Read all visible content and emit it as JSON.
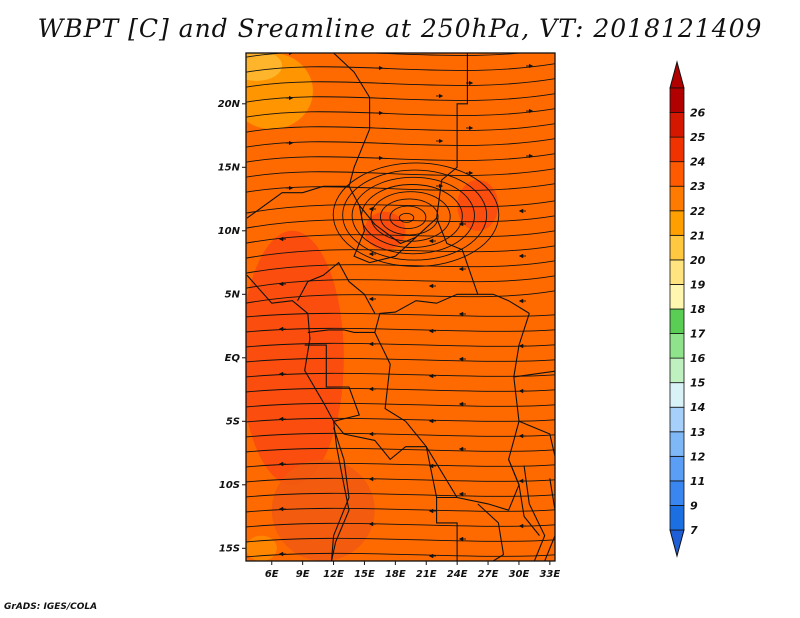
{
  "title": "WBPT [C] and Sreamline at 250hPa, VT: 2018121409",
  "credit": "GrADS: IGES/COLA",
  "map": {
    "lon_range": [
      3.5,
      33.5
    ],
    "lat_range": [
      -16,
      24
    ],
    "lat_ticks": [
      {
        "value": 20,
        "label": "20N"
      },
      {
        "value": 15,
        "label": "15N"
      },
      {
        "value": 10,
        "label": "10N"
      },
      {
        "value": 5,
        "label": "5N"
      },
      {
        "value": 0,
        "label": "EQ"
      },
      {
        "value": -5,
        "label": "5S"
      },
      {
        "value": -10,
        "label": "10S"
      },
      {
        "value": -15,
        "label": "15S"
      }
    ],
    "lon_ticks": [
      {
        "value": 6,
        "label": "6E"
      },
      {
        "value": 9,
        "label": "9E"
      },
      {
        "value": 12,
        "label": "12E"
      },
      {
        "value": 15,
        "label": "15E"
      },
      {
        "value": 18,
        "label": "18E"
      },
      {
        "value": 21,
        "label": "21E"
      },
      {
        "value": 24,
        "label": "24E"
      },
      {
        "value": 27,
        "label": "27E"
      },
      {
        "value": 30,
        "label": "30E"
      },
      {
        "value": 33,
        "label": "33E"
      }
    ],
    "base_color": "#ff6a00",
    "field_patches": [
      {
        "color": "#fa4a10",
        "lon": 8,
        "lat": 0,
        "rx": 5,
        "ry": 10
      },
      {
        "color": "#fa4a10",
        "lon": 26,
        "lat": 12,
        "rx": 2,
        "ry": 2
      },
      {
        "color": "#fa4a10",
        "lon": 17,
        "lat": 10,
        "rx": 2,
        "ry": 1.5
      },
      {
        "color": "#f25a10",
        "lon": 11,
        "lat": -12,
        "rx": 5,
        "ry": 4
      },
      {
        "color": "#ff9a00",
        "lon": 6,
        "lat": 21,
        "rx": 4,
        "ry": 3
      },
      {
        "color": "#ffb830",
        "lon": 4.5,
        "lat": 23,
        "rx": 2.5,
        "ry": 1.2
      },
      {
        "color": "#ff8a00",
        "lon": 5,
        "lat": -15,
        "rx": 1.5,
        "ry": 1
      }
    ],
    "vortex": {
      "lon": 19,
      "lat": 11
    }
  },
  "colorbar": {
    "values": [
      "7",
      "9",
      "11",
      "12",
      "13",
      "14",
      "15",
      "16",
      "17",
      "18",
      "19",
      "20",
      "21",
      "22",
      "23",
      "24",
      "25",
      "26"
    ],
    "colors": [
      "#1b6fe0",
      "#3a86f0",
      "#5a9ff5",
      "#7fb8f7",
      "#a6d0fa",
      "#d8f2f8",
      "#bff0bf",
      "#8fe38a",
      "#5acd55",
      "#fff7b0",
      "#ffe480",
      "#ffc840",
      "#ffa000",
      "#ff7a00",
      "#ff5a00",
      "#f03200",
      "#d41800",
      "#b00000"
    ],
    "low_color": "#1e5fd8",
    "high_color": "#b00000"
  }
}
